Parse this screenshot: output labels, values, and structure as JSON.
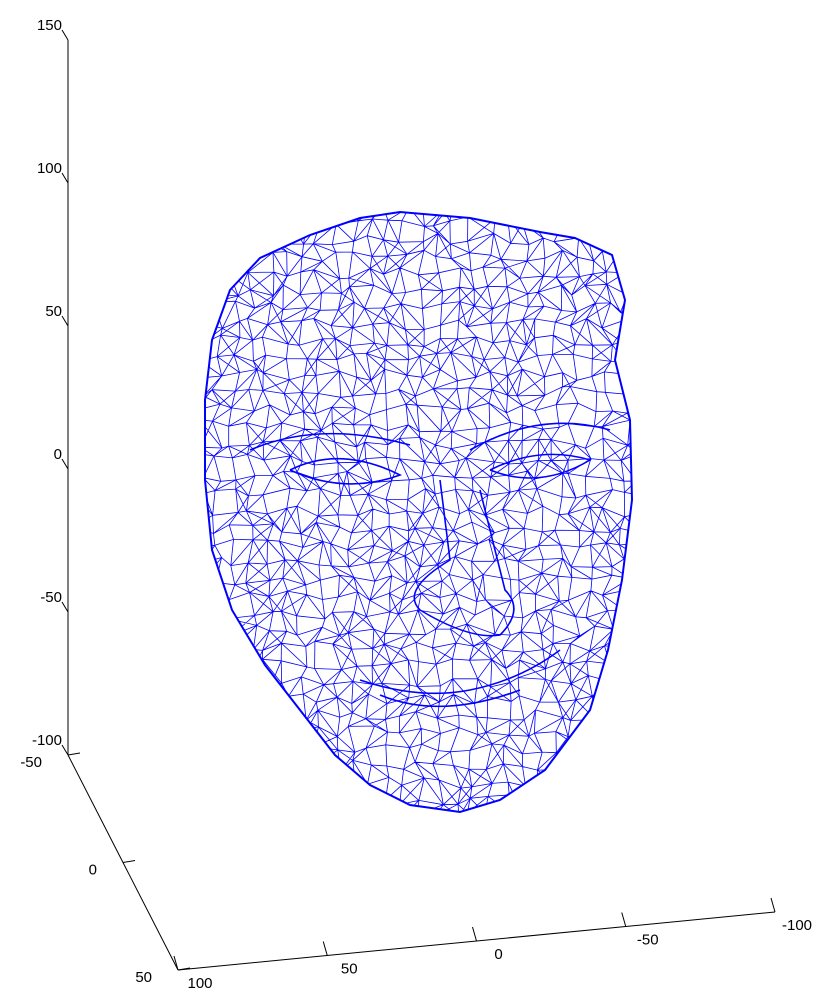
{
  "chart_data": {
    "type": "mesh3d",
    "color": "#0000ff",
    "xlim": [
      100,
      -100
    ],
    "xticks": [
      100,
      50,
      0,
      -50,
      -100
    ],
    "ylim": [
      -50,
      50
    ],
    "yticks": [
      -50,
      0,
      50
    ],
    "zlim": [
      -100,
      150
    ],
    "zticks": [
      -100,
      -50,
      0,
      50,
      100,
      150
    ]
  }
}
